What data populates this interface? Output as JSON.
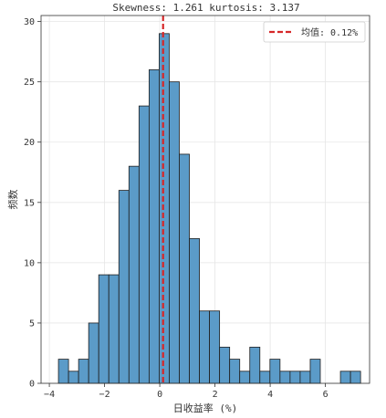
{
  "chart_data": {
    "type": "bar",
    "title": "Skewness: 1.261 kurtosis: 3.137",
    "xlabel": "日收益率 (%)",
    "ylabel": "频数",
    "xlim": [
      -4.3,
      7.6
    ],
    "ylim": [
      0,
      30.5
    ],
    "x_ticks": [
      -4,
      -2,
      0,
      2,
      4,
      6
    ],
    "y_ticks": [
      0,
      5,
      10,
      15,
      20,
      25,
      30
    ],
    "grid": true,
    "legend_position": "top-right",
    "bins": {
      "start": -3.67,
      "width": 0.3648,
      "counts": [
        2,
        1,
        2,
        5,
        9,
        9,
        16,
        18,
        23,
        26,
        29,
        25,
        19,
        12,
        6,
        6,
        3,
        2,
        1,
        3,
        1,
        2,
        1,
        1,
        1,
        2,
        0,
        0,
        1,
        1
      ]
    },
    "mean_line": {
      "value": 0.12,
      "label": "均值: 0.12%"
    },
    "colors": {
      "bar_fill": "#5b9bc8",
      "bar_edge": "#1f1f1f",
      "mean_line": "#d62728",
      "grid": "#e6e6e6"
    }
  }
}
